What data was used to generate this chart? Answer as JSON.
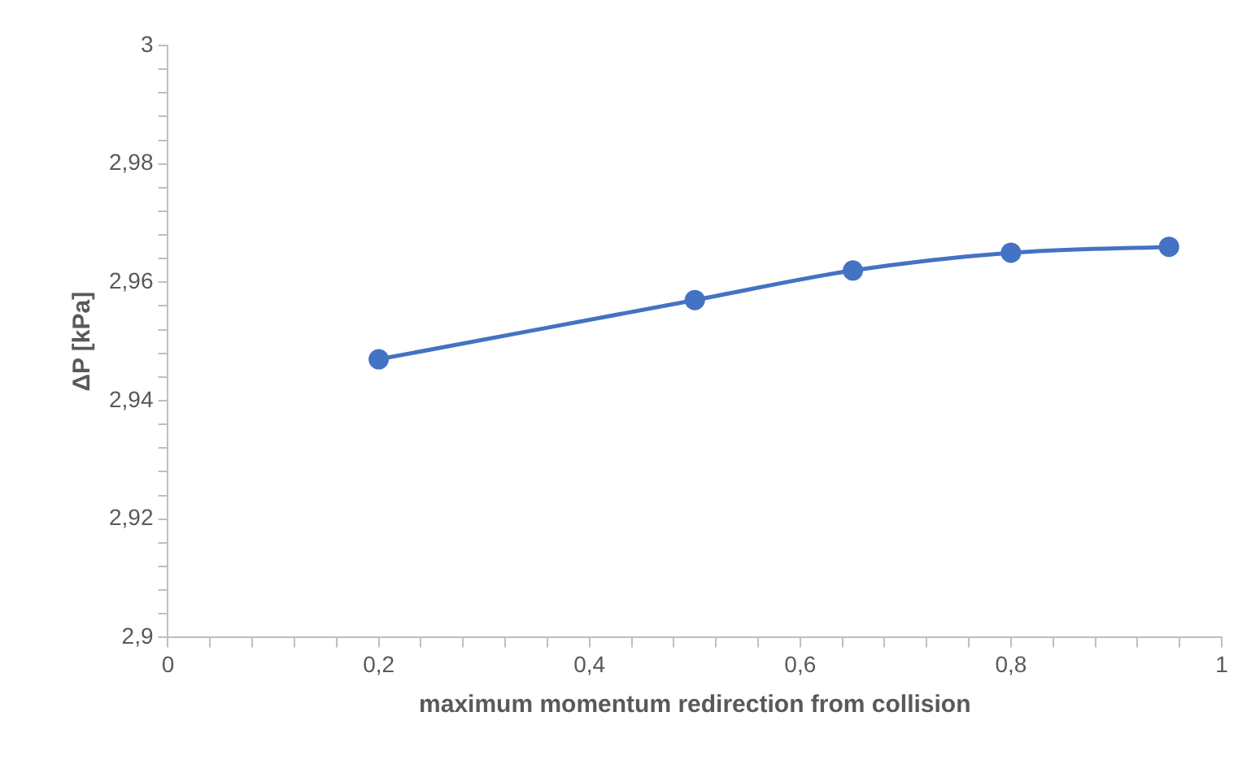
{
  "chart_data": {
    "type": "line",
    "xlabel": "maximum momentum redirection from collision",
    "ylabel": "ΔP [kPa]",
    "x": [
      0.2,
      0.5,
      0.65,
      0.8,
      0.95
    ],
    "series": [
      {
        "color": "#4472c4",
        "values": [
          2.947,
          2.957,
          2.962,
          2.965,
          2.966
        ]
      }
    ],
    "xlim": [
      0,
      1
    ],
    "xticks": [
      0,
      {
        "value": 0.04,
        "label": null
      },
      {
        "value": 0.08,
        "label": null
      },
      {
        "value": 0.12,
        "label": null
      },
      {
        "value": 0.16,
        "label": null
      },
      {
        "value": 0.2,
        "label": "0,2"
      },
      {
        "value": 0.24,
        "label": null
      },
      {
        "value": 0.28,
        "label": null
      },
      {
        "value": 0.32,
        "label": null
      },
      {
        "value": 0.36,
        "label": null
      },
      {
        "value": 0.4,
        "label": "0,4"
      },
      {
        "value": 0.44,
        "label": null
      },
      {
        "value": 0.48,
        "label": null
      },
      {
        "value": 0.52,
        "label": null
      },
      {
        "value": 0.56,
        "label": null
      },
      {
        "value": 0.6,
        "label": "0,6"
      },
      {
        "value": 0.64,
        "label": null
      },
      {
        "value": 0.68,
        "label": null
      },
      {
        "value": 0.72,
        "label": null
      },
      {
        "value": 0.76,
        "label": null
      },
      {
        "value": 0.8,
        "label": "0,8"
      },
      {
        "value": 0.84,
        "label": null
      },
      {
        "value": 0.88,
        "label": null
      },
      {
        "value": 0.92,
        "label": null
      },
      {
        "value": 0.96,
        "label": null
      },
      1
    ],
    "ylim": [
      2.9,
      3
    ],
    "yticks": [
      {
        "value": 2.9,
        "label": "2,9"
      },
      {
        "value": 2.904,
        "label": null
      },
      {
        "value": 2.908,
        "label": null
      },
      {
        "value": 2.912,
        "label": null
      },
      {
        "value": 2.916,
        "label": null
      },
      {
        "value": 2.92,
        "label": "2,92"
      },
      {
        "value": 2.924,
        "label": null
      },
      {
        "value": 2.928,
        "label": null
      },
      {
        "value": 2.932,
        "label": null
      },
      {
        "value": 2.936,
        "label": null
      },
      {
        "value": 2.94,
        "label": "2,94"
      },
      {
        "value": 2.944,
        "label": null
      },
      {
        "value": 2.948,
        "label": null
      },
      {
        "value": 2.952,
        "label": null
      },
      {
        "value": 2.956,
        "label": null
      },
      {
        "value": 2.96,
        "label": "2,96"
      },
      {
        "value": 2.964,
        "label": null
      },
      {
        "value": 2.968,
        "label": null
      },
      {
        "value": 2.972,
        "label": null
      },
      {
        "value": 2.976,
        "label": null
      },
      {
        "value": 2.98,
        "label": "2,98"
      },
      {
        "value": 2.984,
        "label": null
      },
      {
        "value": 2.988,
        "label": null
      },
      {
        "value": 2.992,
        "label": null
      },
      {
        "value": 2.996,
        "label": null
      },
      3
    ],
    "marker": "circle",
    "line_style": "solid"
  }
}
